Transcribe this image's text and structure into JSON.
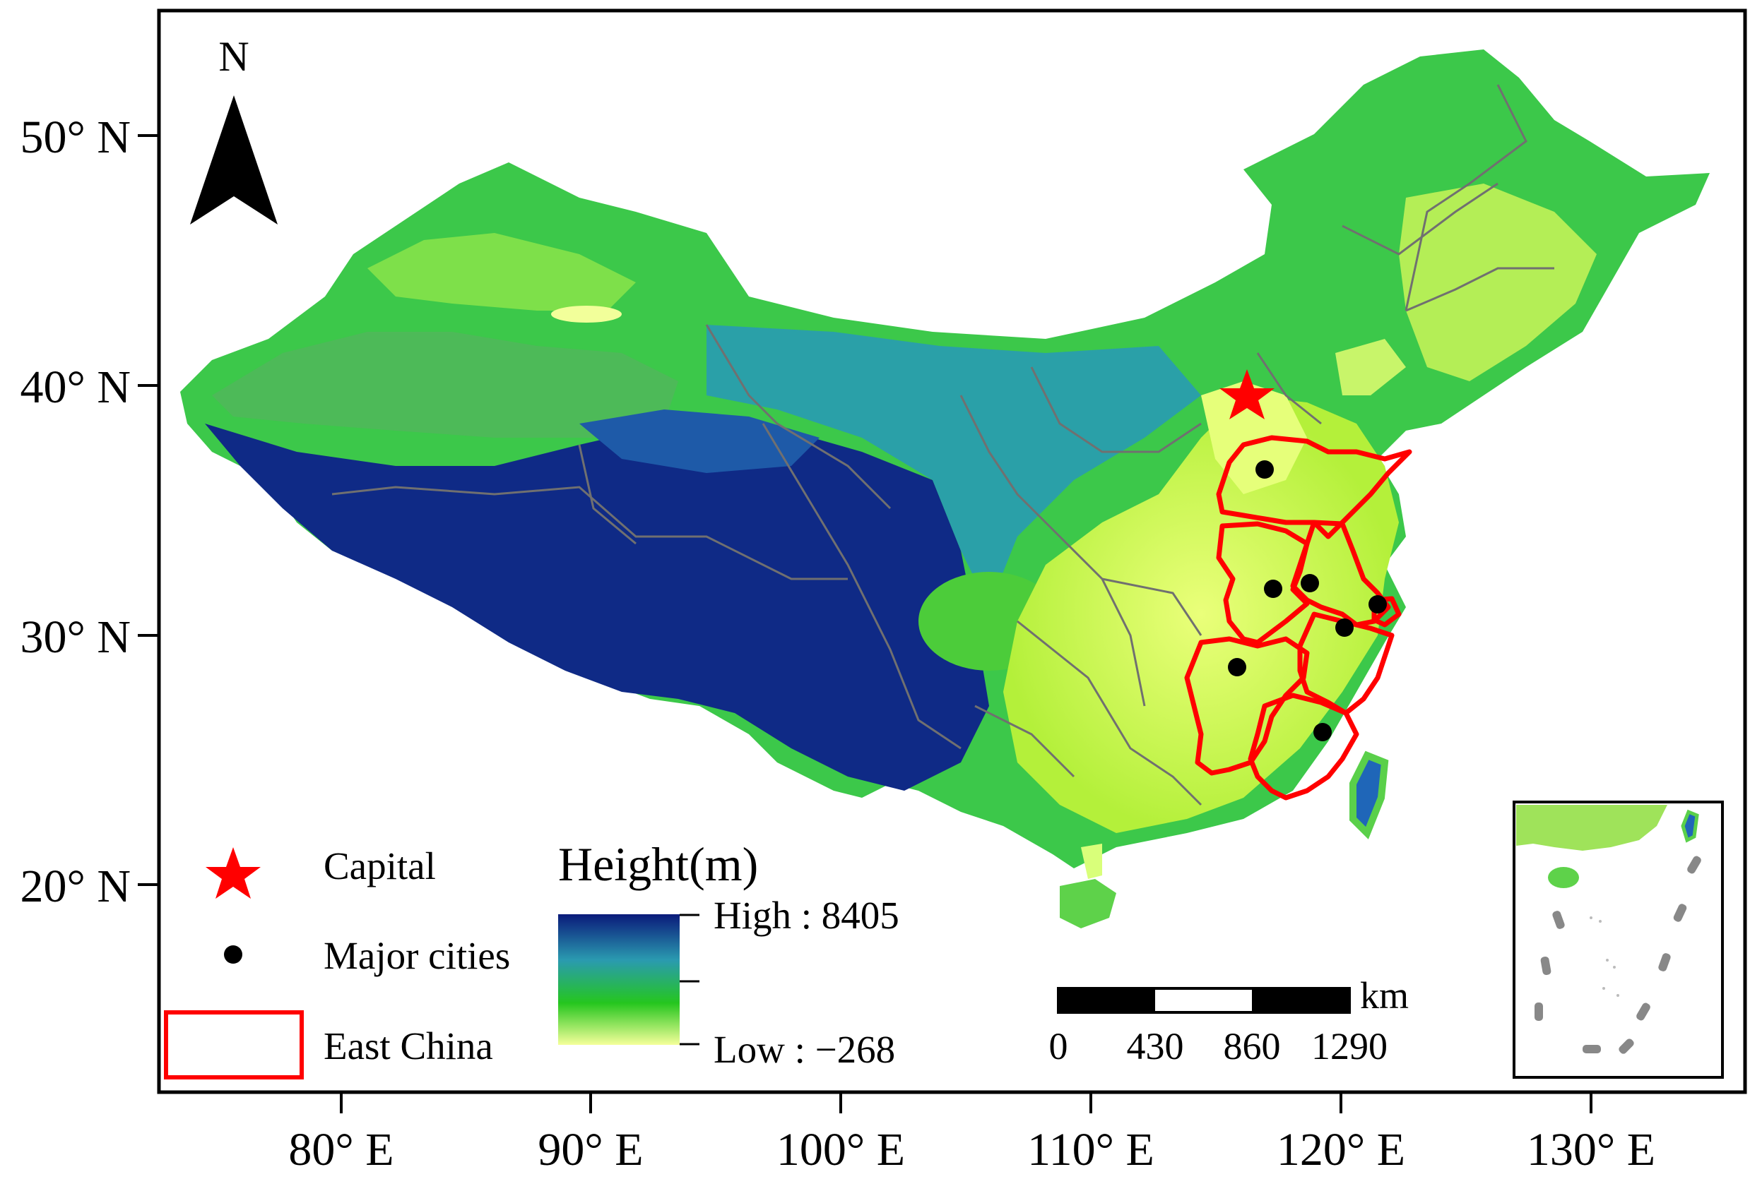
{
  "map": {
    "north_label": "N",
    "lat_ticks": [
      "50° N",
      "40° N",
      "30° N",
      "20° N"
    ],
    "lon_ticks": [
      "80° E",
      "90° E",
      "100° E",
      "110° E",
      "120° E",
      "130° E"
    ],
    "legend": {
      "capital": "Capital",
      "major_cities": "Major cities",
      "east_china": "East China"
    },
    "height_legend": {
      "title": "Height(m)",
      "high": "High : 8405",
      "low": "Low : −268"
    },
    "scale_bar": {
      "unit": "km",
      "labels": [
        "0",
        "430",
        "860",
        "1290"
      ]
    },
    "colors": {
      "capital": "#ff0000",
      "east_china_outline": "#ff0000",
      "city": "#000000",
      "high": "#0a1a7a",
      "mid_high": "#2a9ab0",
      "mid": "#25c61e",
      "low": "#f5ff9a"
    }
  }
}
